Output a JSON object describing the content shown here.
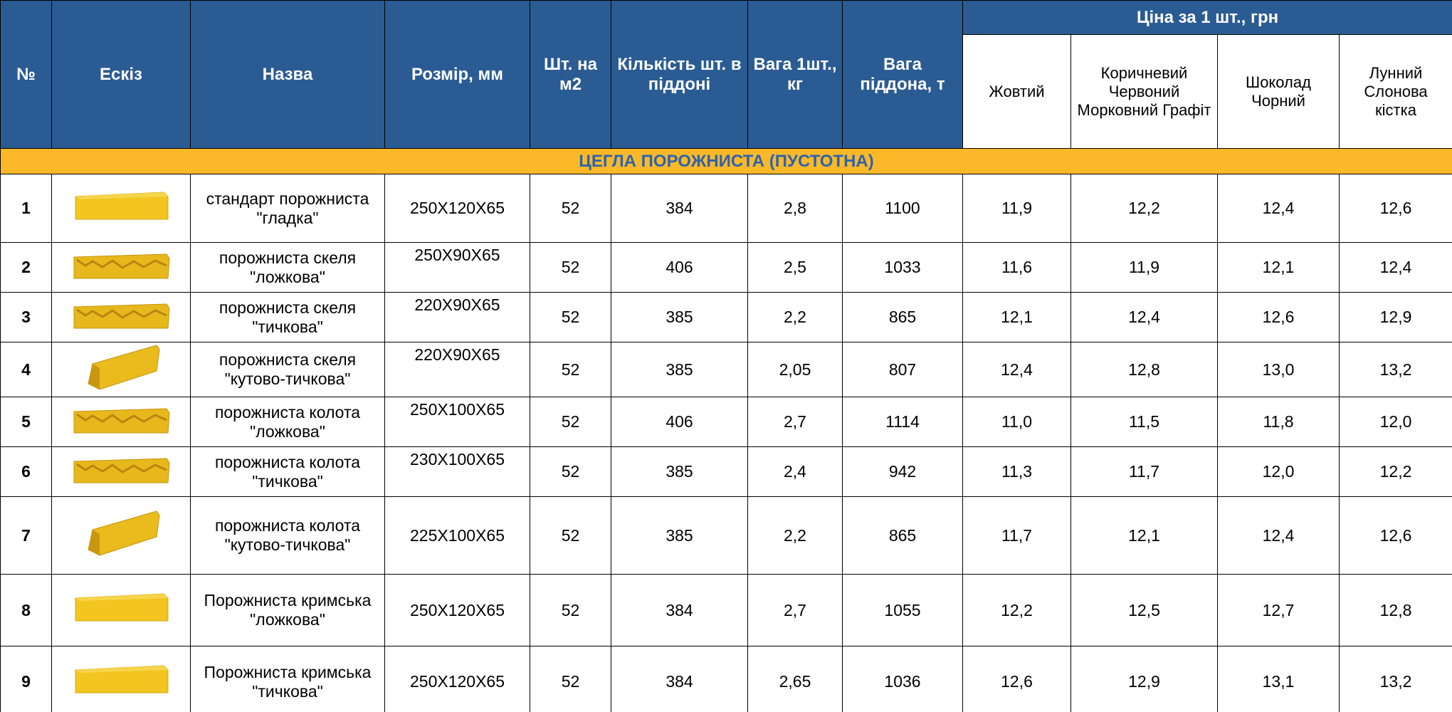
{
  "header": {
    "columns": [
      "№",
      "Ескіз",
      "Назва",
      "Розмір, мм",
      "Шт. на м2",
      "Кількість шт. в піддоні",
      "Вага 1шт., кг",
      "Вага піддона, т"
    ],
    "price_group": "Ціна за 1 шт., грн",
    "price_columns": [
      "Жовтий",
      "Коричневий Червоний Морковний Графіт",
      "Шоколад Чорний",
      "Лунний Слонова кістка"
    ]
  },
  "table": {
    "section": "ЦЕГЛА ПОРОЖНИСТА (ПУСТОТНА)",
    "rows": [
      [
        "1",
        "стандарт порожниста \"гладка\"",
        "250X120X65",
        "52",
        "384",
        "2,8",
        "1100",
        "11,9",
        "12,2",
        "12,4",
        "12,6"
      ],
      [
        "2",
        "порожниста скеля \"ложкова\"",
        "250X90X65",
        "52",
        "406",
        "2,5",
        "1033",
        "11,6",
        "11,9",
        "12,1",
        "12,4"
      ],
      [
        "3",
        "порожниста скеля \"тичкова\"",
        "220X90X65",
        "52",
        "385",
        "2,2",
        "865",
        "12,1",
        "12,4",
        "12,6",
        "12,9"
      ],
      [
        "4",
        "порожниста скеля \"кутово-тичкова\"",
        "220X90X65",
        "52",
        "385",
        "2,05",
        "807",
        "12,4",
        "12,8",
        "13,0",
        "13,2"
      ],
      [
        "5",
        "порожниста колота \"ложкова\"",
        "250X100X65",
        "52",
        "406",
        "2,7",
        "1114",
        "11,0",
        "11,5",
        "11,8",
        "12,0"
      ],
      [
        "6",
        "порожниста колота \"тичкова\"",
        "230X100X65",
        "52",
        "385",
        "2,4",
        "942",
        "11,3",
        "11,7",
        "12,0",
        "12,2"
      ],
      [
        "7",
        "порожниста колота \"кутово-тичкова\"",
        "225X100X65",
        "52",
        "385",
        "2,2",
        "865",
        "11,7",
        "12,1",
        "12,4",
        "12,6"
      ],
      [
        "8",
        "Порожниста кримська \"ложкова\"",
        "250X120X65",
        "52",
        "384",
        "2,7",
        "1055",
        "12,2",
        "12,5",
        "12,7",
        "12,8"
      ],
      [
        "9",
        "Порожниста кримська \"тичкова\"",
        "250X120X65",
        "52",
        "384",
        "2,65",
        "1036",
        "12,6",
        "12,9",
        "13,1",
        "13,2"
      ]
    ]
  }
}
